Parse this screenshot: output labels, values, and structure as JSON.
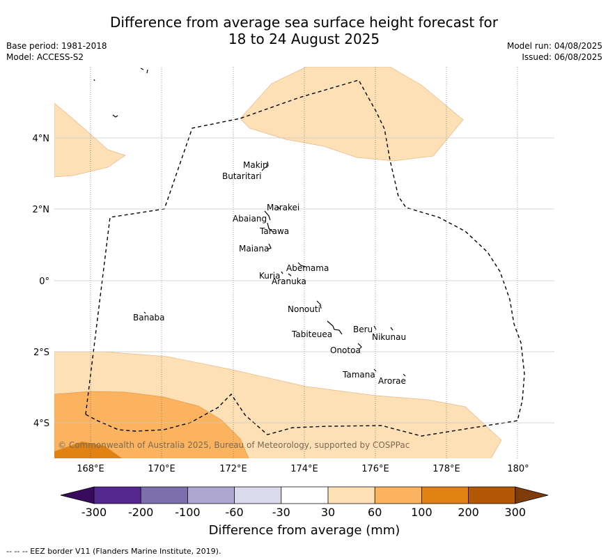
{
  "header": {
    "title_line1": "Difference from average sea surface height forecast for",
    "title_line2": "18 to 24 August 2025",
    "base_period": "Base period: 1981-2018",
    "model": "Model: ACCESS-S2",
    "model_run": "Model run: 04/08/2025",
    "issued": "Issued: 06/08/2025"
  },
  "map": {
    "copyright": "© Commonwealth of Australia 2025, Bureau of Meteorology, supported by COSPPac",
    "lon_labels": [
      "168°E",
      "170°E",
      "172°E",
      "174°E",
      "176°E",
      "178°E",
      "180°"
    ],
    "lat_labels": [
      "4°N",
      "2°N",
      "0°",
      "2°S",
      "4°S"
    ],
    "islands": [
      {
        "name": "Makin"
      },
      {
        "name": "Butaritari"
      },
      {
        "name": "Marakei"
      },
      {
        "name": "Abaiang"
      },
      {
        "name": "Tarawa"
      },
      {
        "name": "Maiana"
      },
      {
        "name": "Abemama"
      },
      {
        "name": "Kuria"
      },
      {
        "name": "Aranuka"
      },
      {
        "name": "Nonouti"
      },
      {
        "name": "Banaba"
      },
      {
        "name": "Beru"
      },
      {
        "name": "Nikunau"
      },
      {
        "name": "Tabiteuea"
      },
      {
        "name": "Onotoa"
      },
      {
        "name": "Tamana"
      },
      {
        "name": "Arorae"
      }
    ]
  },
  "colorbar": {
    "label": "Difference from average (mm)",
    "ticks": [
      "-300",
      "-200",
      "-100",
      "-60",
      "-30",
      "30",
      "60",
      "100",
      "200",
      "300"
    ],
    "colors": [
      "#3a0a5e",
      "#54278f",
      "#7d6fab",
      "#aca6d0",
      "#dadaeb",
      "#ffffff",
      "#fee0b6",
      "#fbb360",
      "#e08214",
      "#b35806",
      "#7f3b08"
    ]
  },
  "footnote": "--  --  -- EEZ border V11 (Flanders Marine Institute, 2019)."
}
